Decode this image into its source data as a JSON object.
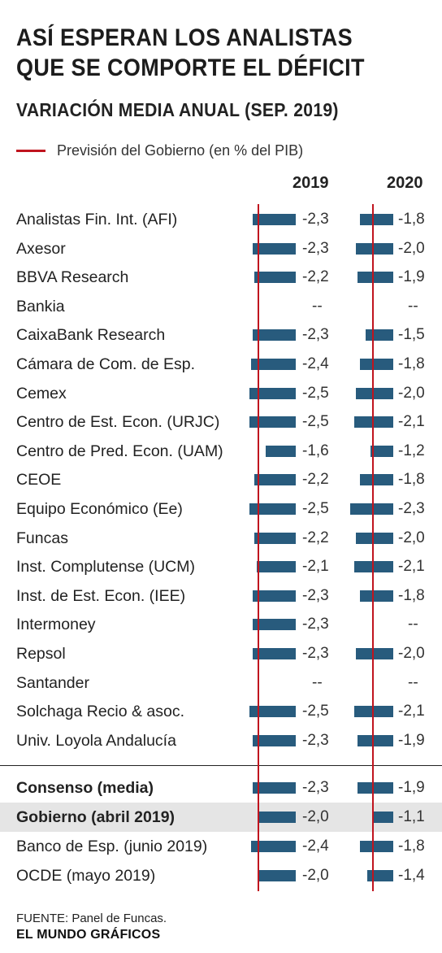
{
  "chart_data": {
    "type": "bar",
    "title": "ASÍ ESPERAN LOS ANALISTAS QUE SE COMPORTE EL DÉFICIT",
    "subtitle": "VARIACIÓN MEDIA ANUAL (SEP. 2019)",
    "legend": {
      "reference_label": "Previsión del Gobierno (en % del PIB)",
      "reference_color": "#c0141e"
    },
    "bar_color": "#285b7d",
    "highlight_color": "#e5e5e5",
    "columns": [
      "2019",
      "2020"
    ],
    "reference_values": [
      -2.0,
      -1.1
    ],
    "rows": [
      {
        "label": "Analistas Fin. Int. (AFI)",
        "values": [
          -2.3,
          -1.8
        ],
        "display": [
          "-2,3",
          "-1,8"
        ]
      },
      {
        "label": "Axesor",
        "values": [
          -2.3,
          -2.0
        ],
        "display": [
          "-2,3",
          "-2,0"
        ]
      },
      {
        "label": "BBVA Research",
        "values": [
          -2.2,
          -1.9
        ],
        "display": [
          "-2,2",
          "-1,9"
        ]
      },
      {
        "label": "Bankia",
        "values": [
          null,
          null
        ],
        "display": [
          "--",
          "--"
        ]
      },
      {
        "label": "CaixaBank Research",
        "values": [
          -2.3,
          -1.5
        ],
        "display": [
          "-2,3",
          "-1,5"
        ]
      },
      {
        "label": "Cámara de Com. de Esp.",
        "values": [
          -2.4,
          -1.8
        ],
        "display": [
          "-2,4",
          "-1,8"
        ]
      },
      {
        "label": "Cemex",
        "values": [
          -2.5,
          -2.0
        ],
        "display": [
          "-2,5",
          "-2,0"
        ]
      },
      {
        "label": "Centro de Est. Econ. (URJC)",
        "values": [
          -2.5,
          -2.1
        ],
        "display": [
          "-2,5",
          "-2,1"
        ]
      },
      {
        "label": "Centro de Pred. Econ. (UAM)",
        "values": [
          -1.6,
          -1.2
        ],
        "display": [
          "-1,6",
          "-1,2"
        ]
      },
      {
        "label": "CEOE",
        "values": [
          -2.2,
          -1.8
        ],
        "display": [
          "-2,2",
          "-1,8"
        ]
      },
      {
        "label": "Equipo Económico (Ee)",
        "values": [
          -2.5,
          -2.3
        ],
        "display": [
          "-2,5",
          "-2,3"
        ]
      },
      {
        "label": "Funcas",
        "values": [
          -2.2,
          -2.0
        ],
        "display": [
          "-2,2",
          "-2,0"
        ]
      },
      {
        "label": "Inst. Complutense (UCM)",
        "values": [
          -2.1,
          -2.1
        ],
        "display": [
          "-2,1",
          "-2,1"
        ]
      },
      {
        "label": "Inst. de Est. Econ. (IEE)",
        "values": [
          -2.3,
          -1.8
        ],
        "display": [
          "-2,3",
          "-1,8"
        ]
      },
      {
        "label": "Intermoney",
        "values": [
          -2.3,
          null
        ],
        "display": [
          "-2,3",
          "--"
        ]
      },
      {
        "label": "Repsol",
        "values": [
          -2.3,
          -2.0
        ],
        "display": [
          "-2,3",
          "-2,0"
        ]
      },
      {
        "label": "Santander",
        "values": [
          null,
          null
        ],
        "display": [
          "--",
          "--"
        ]
      },
      {
        "label": "Solchaga Recio & asoc.",
        "values": [
          -2.5,
          -2.1
        ],
        "display": [
          "-2,5",
          "-2,1"
        ]
      },
      {
        "label": "Univ. Loyola Andalucía",
        "values": [
          -2.3,
          -1.9
        ],
        "display": [
          "-2,3",
          "-1,9"
        ]
      }
    ],
    "summary_rows": [
      {
        "label": "Consenso (media)",
        "values": [
          -2.3,
          -1.9
        ],
        "display": [
          "-2,3",
          "-1,9"
        ],
        "bold": true
      },
      {
        "label": "Gobierno (abril 2019)",
        "values": [
          -2.0,
          -1.1
        ],
        "display": [
          "-2,0",
          "-1,1"
        ],
        "bold": true,
        "highlight": true
      },
      {
        "label": "Banco de Esp. (junio 2019)",
        "values": [
          -2.4,
          -1.8
        ],
        "display": [
          "-2,4",
          "-1,8"
        ]
      },
      {
        "label": "OCDE (mayo 2019)",
        "values": [
          -2.0,
          -1.4
        ],
        "display": [
          "-2,0",
          "-1,4"
        ]
      }
    ]
  },
  "footer": {
    "source": "FUENTE: Panel de Funcas.",
    "brand": "EL MUNDO GRÁFICOS"
  }
}
